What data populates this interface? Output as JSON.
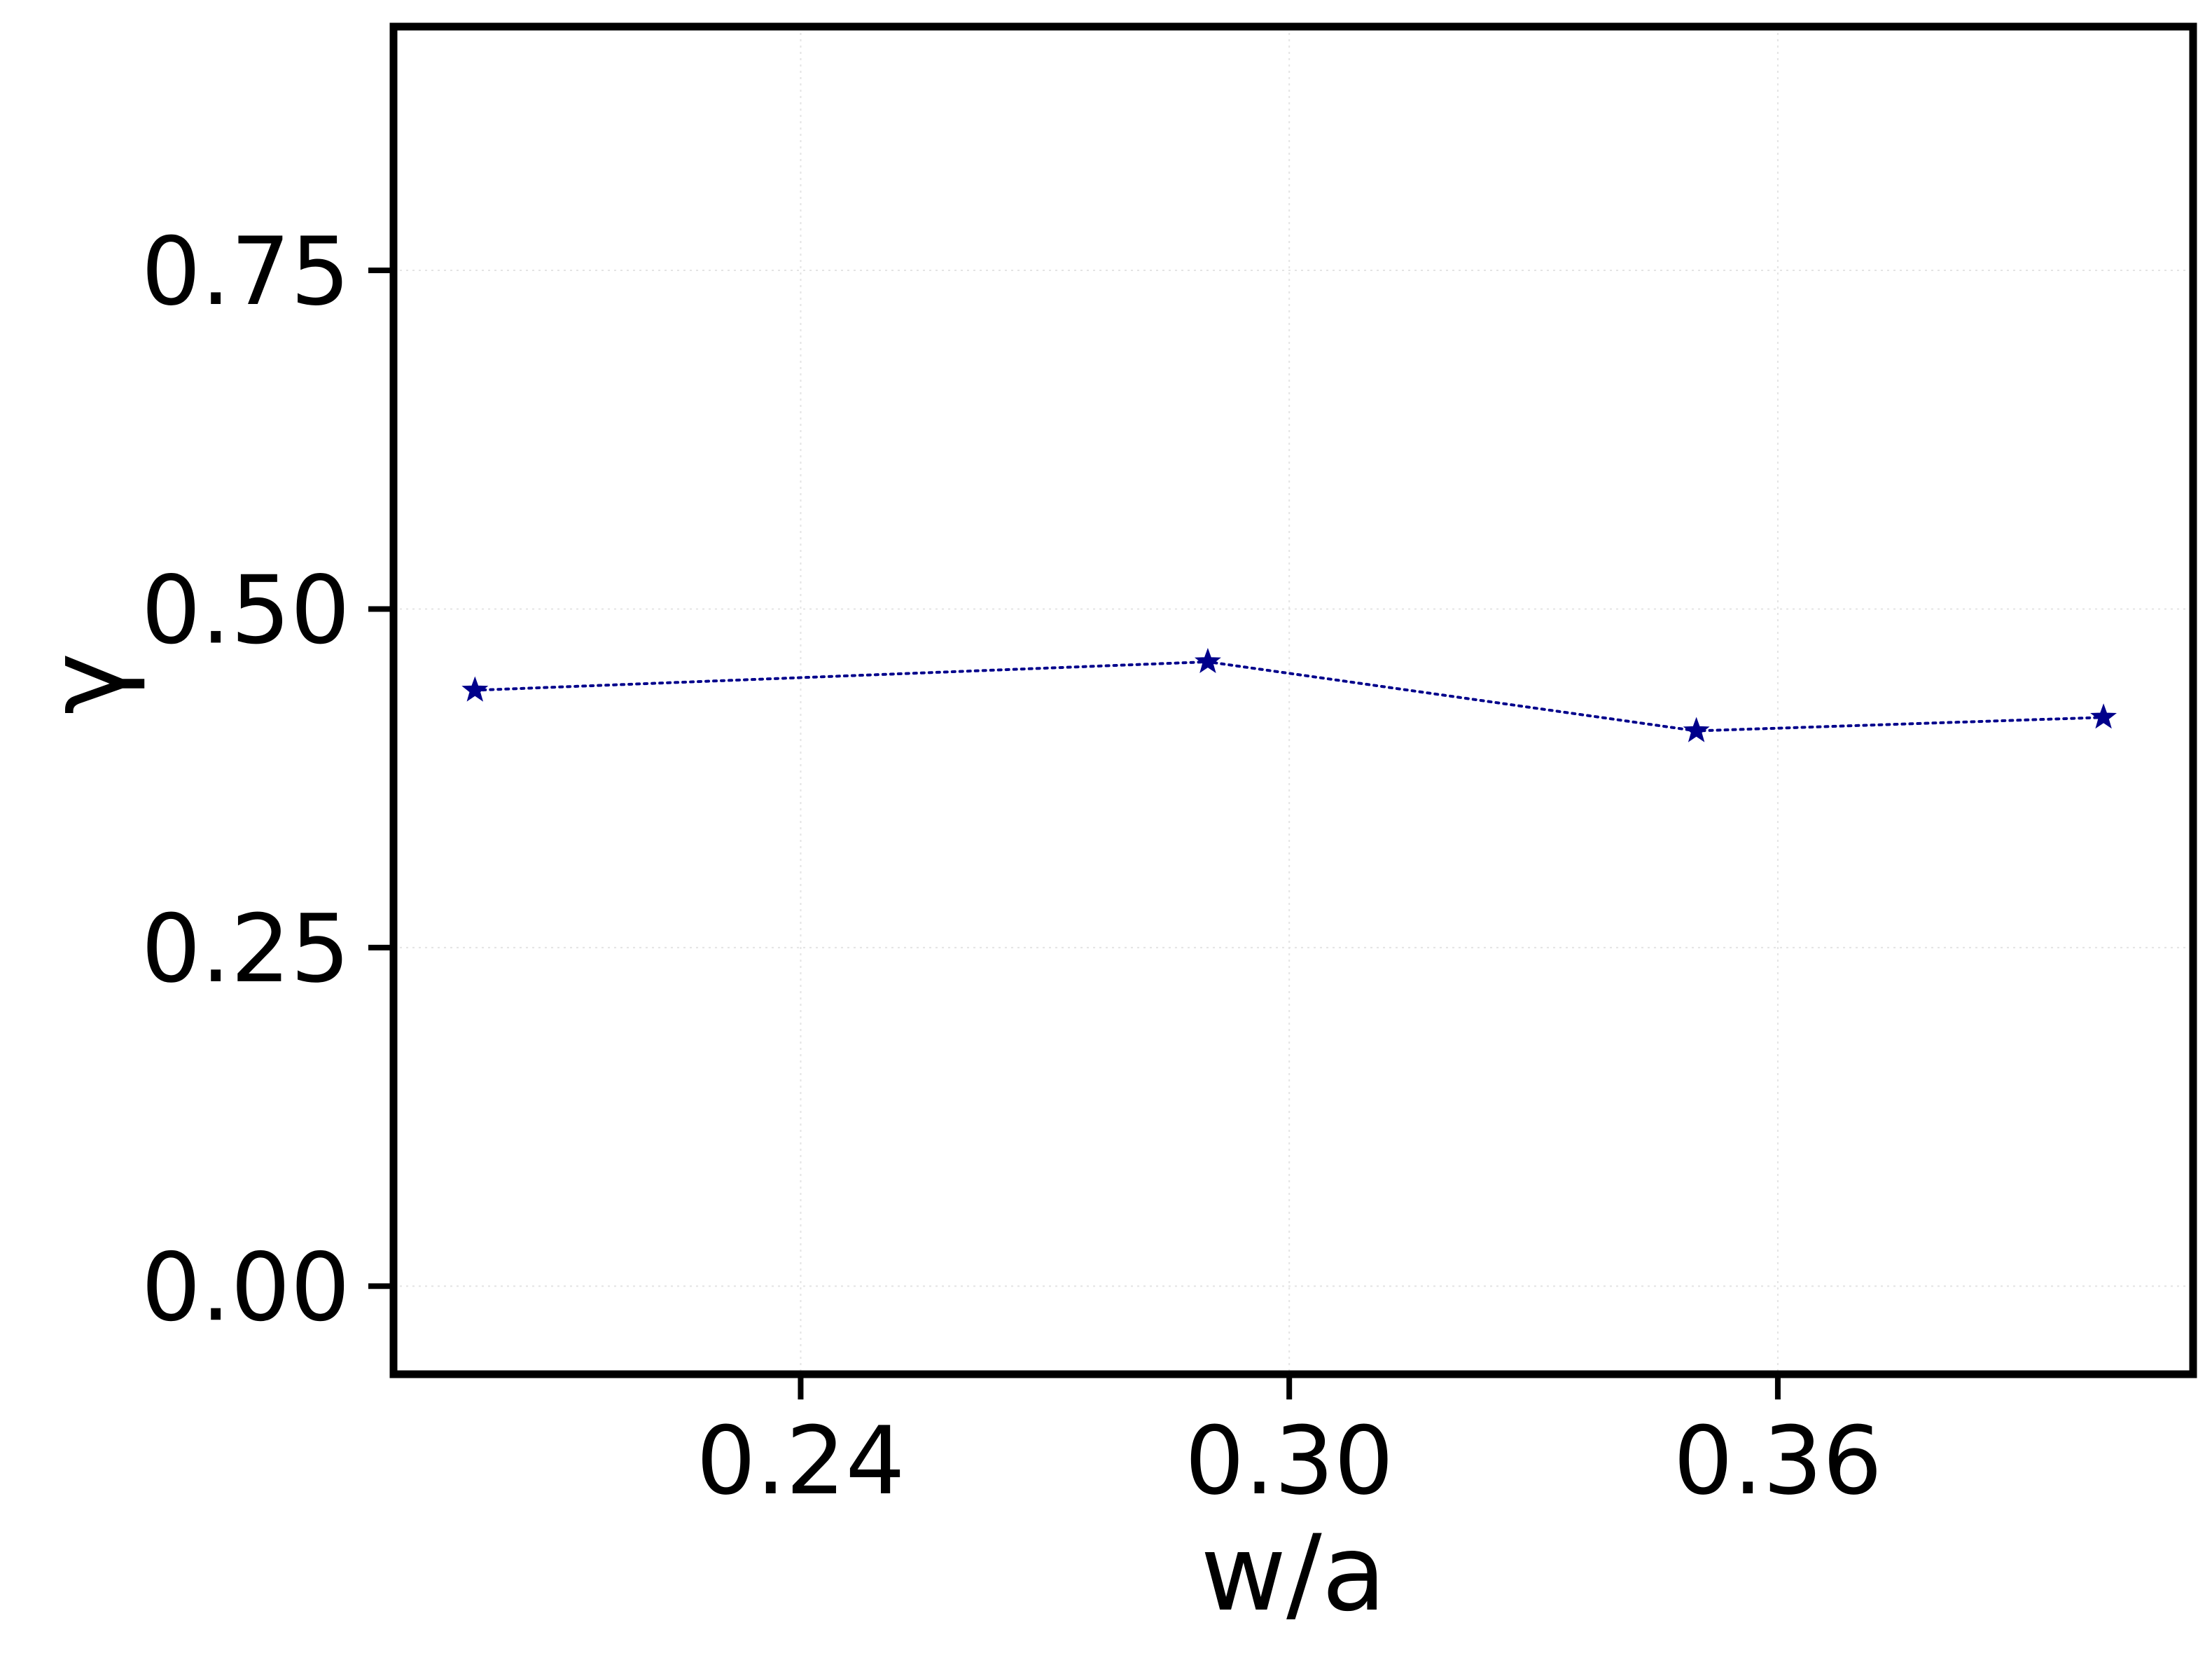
{
  "chart_data": {
    "type": "line",
    "title": "",
    "xlabel": "w/a",
    "ylabel": "γ",
    "xlim": [
      0.19,
      0.411
    ],
    "ylim": [
      -0.065,
      0.93
    ],
    "xticks": [
      0.24,
      0.3,
      0.36
    ],
    "xtick_labels": [
      "0.24",
      "0.30",
      "0.36"
    ],
    "yticks": [
      0.0,
      0.25,
      0.5,
      0.75
    ],
    "ytick_labels": [
      "0.00",
      "0.25",
      "0.50",
      "0.75"
    ],
    "grid": true,
    "legend": "none",
    "series": [
      {
        "x": [
          0.2,
          0.29,
          0.35,
          0.4
        ],
        "y": [
          0.44,
          0.461,
          0.41,
          0.42
        ],
        "color": "#00008b",
        "line_style": "dotted",
        "marker": "star"
      }
    ]
  }
}
